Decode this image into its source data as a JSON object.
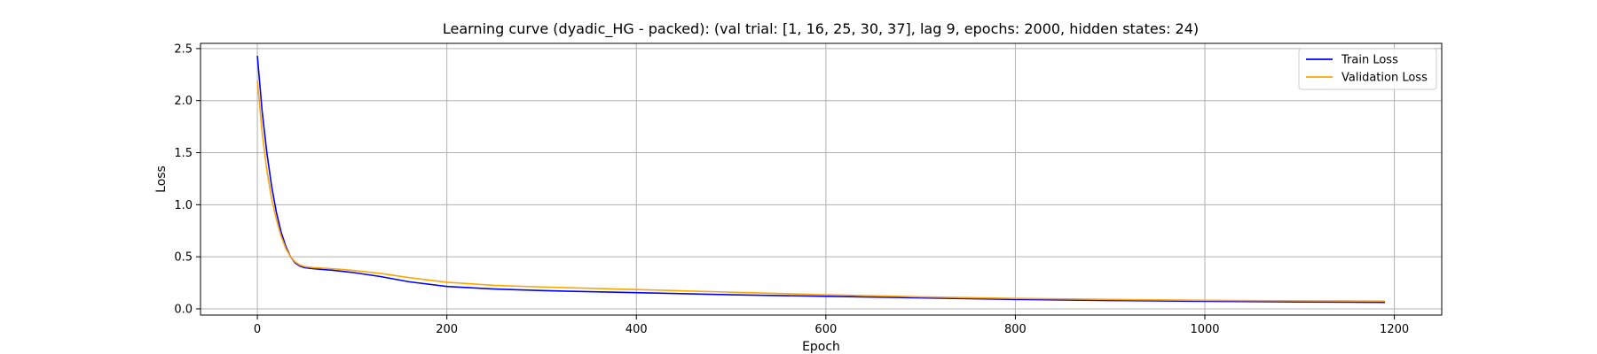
{
  "chart_data": {
    "type": "line",
    "title": "Learning curve (dyadic_HG - packed): (val trial: [1, 16, 25, 30, 37], lag 9, epochs: 2000, hidden states: 24)",
    "xlabel": "Epoch",
    "ylabel": "Loss",
    "xlim": [
      -60,
      1250
    ],
    "ylim": [
      -0.06,
      2.55
    ],
    "xticks": [
      0,
      200,
      400,
      600,
      800,
      1000,
      1200
    ],
    "xtick_labels": [
      "0",
      "200",
      "400",
      "600",
      "800",
      "1000",
      "1200"
    ],
    "yticks": [
      0.0,
      0.5,
      1.0,
      1.5,
      2.0,
      2.5
    ],
    "ytick_labels": [
      "0.0",
      "0.5",
      "1.0",
      "1.5",
      "2.0",
      "2.5"
    ],
    "grid": true,
    "legend_position": "top-right",
    "series": [
      {
        "name": "Train Loss",
        "color": "#0000ff",
        "x": [
          0,
          5,
          10,
          15,
          20,
          25,
          30,
          35,
          40,
          45,
          50,
          60,
          80,
          100,
          130,
          160,
          200,
          250,
          300,
          400,
          500,
          600,
          700,
          800,
          900,
          1000,
          1100,
          1190
        ],
        "y": [
          2.43,
          1.9,
          1.5,
          1.18,
          0.93,
          0.74,
          0.6,
          0.5,
          0.44,
          0.41,
          0.395,
          0.385,
          0.37,
          0.35,
          0.31,
          0.26,
          0.215,
          0.19,
          0.175,
          0.155,
          0.135,
          0.12,
          0.105,
          0.09,
          0.08,
          0.072,
          0.066,
          0.062
        ]
      },
      {
        "name": "Validation Loss",
        "color": "#ffa500",
        "x": [
          0,
          5,
          10,
          15,
          20,
          25,
          30,
          35,
          40,
          45,
          50,
          60,
          80,
          100,
          130,
          160,
          200,
          250,
          300,
          400,
          500,
          600,
          700,
          800,
          900,
          1000,
          1100,
          1190
        ],
        "y": [
          2.19,
          1.7,
          1.33,
          1.06,
          0.86,
          0.7,
          0.58,
          0.5,
          0.45,
          0.42,
          0.405,
          0.395,
          0.385,
          0.37,
          0.34,
          0.3,
          0.255,
          0.225,
          0.21,
          0.185,
          0.16,
          0.135,
          0.115,
          0.1,
          0.09,
          0.082,
          0.077,
          0.074
        ]
      }
    ]
  }
}
